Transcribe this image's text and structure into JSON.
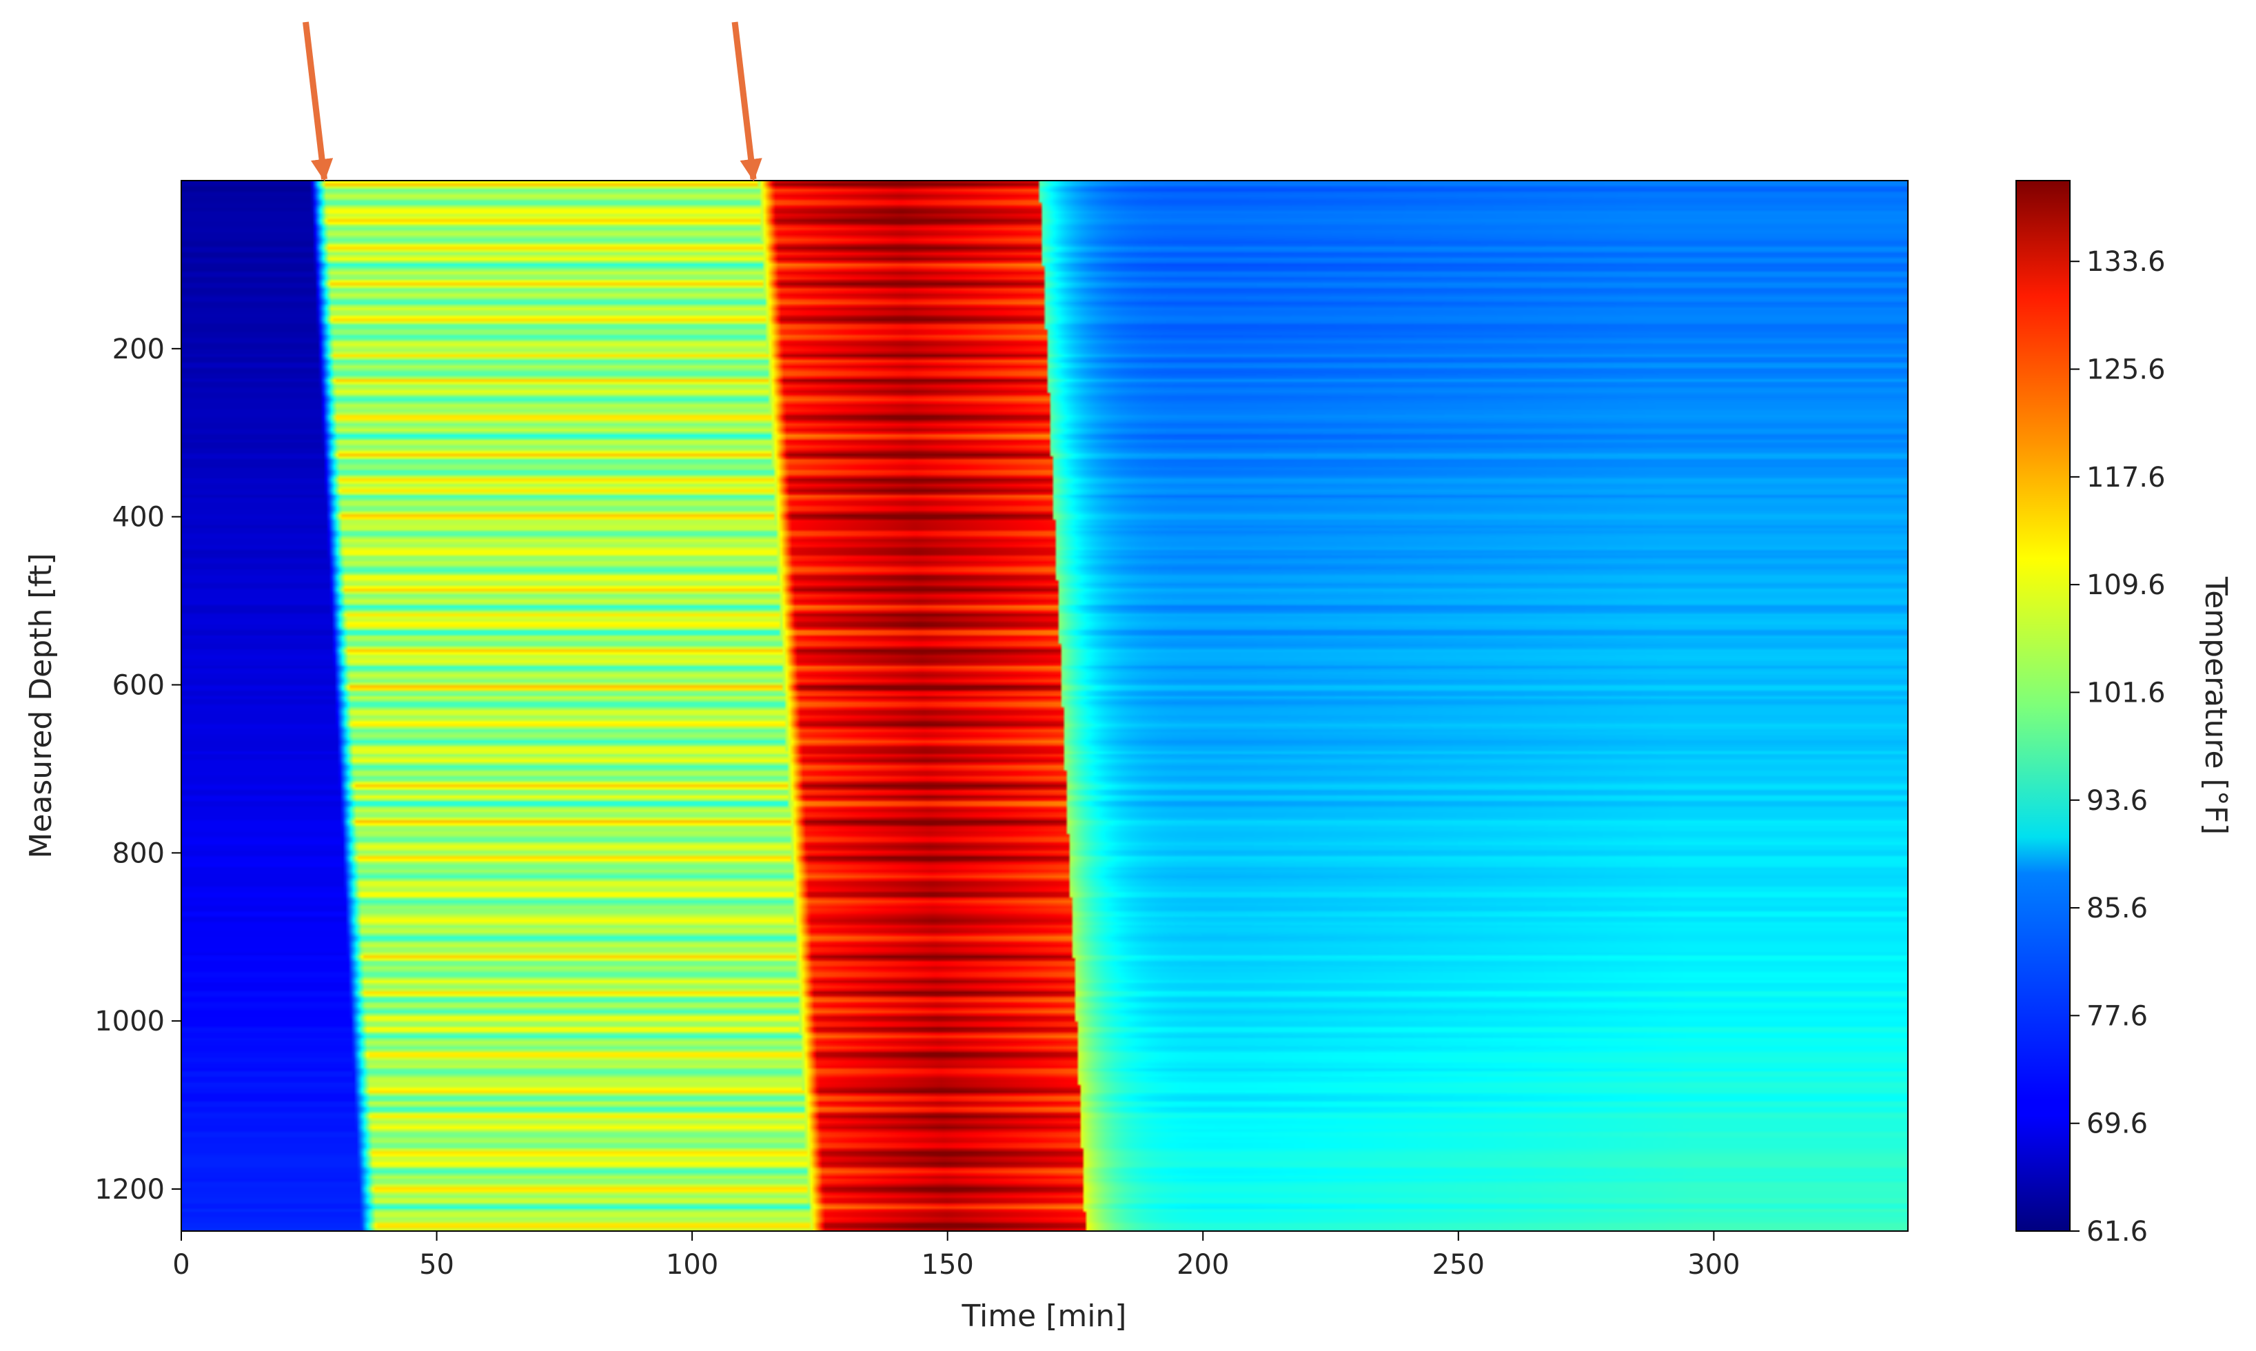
{
  "chart_data": {
    "type": "heatmap",
    "title": "",
    "xlabel": "Time [min]",
    "ylabel": "Measured Depth [ft]",
    "xlim": [
      0,
      338
    ],
    "ylim": [
      1250,
      0
    ],
    "y_inverted": true,
    "x_ticks": [
      0,
      50,
      100,
      150,
      200,
      250,
      300
    ],
    "y_ticks": [
      200,
      400,
      600,
      800,
      1000,
      1200
    ],
    "colormap": "jet",
    "colorbar": {
      "label": "Temperature [°F]",
      "range": [
        61.6,
        139.6
      ],
      "ticks": [
        61.6,
        69.6,
        77.6,
        85.6,
        93.6,
        101.6,
        109.6,
        117.6,
        125.6,
        133.6
      ]
    },
    "value_bands": [
      {
        "region": "pre-injection baseline",
        "t_start": 0,
        "t_end_top": 25,
        "t_end_bottom": 35,
        "temperature_top": 64,
        "temperature_bottom": 74
      },
      {
        "region": "first injection period",
        "t_start_top": 25,
        "t_start_bottom": 35,
        "t_end_top": 113,
        "t_end_bottom": 123,
        "temperature_mean": 104
      },
      {
        "region": "second injection period",
        "t_start_top": 113,
        "t_start_bottom": 123,
        "t_end_top": 168,
        "t_end_bottom": 177,
        "temperature_mean": 128
      },
      {
        "region": "warm-back",
        "t_start_top": 168,
        "t_start_bottom": 177,
        "t_end": 338,
        "temperature_top": 80,
        "temperature_bottom": 93
      }
    ],
    "annotations": [
      {
        "type": "arrow",
        "color": "#E8703A",
        "points_to_time": 28
      },
      {
        "type": "arrow",
        "color": "#E8703A",
        "points_to_time": 112
      }
    ]
  }
}
